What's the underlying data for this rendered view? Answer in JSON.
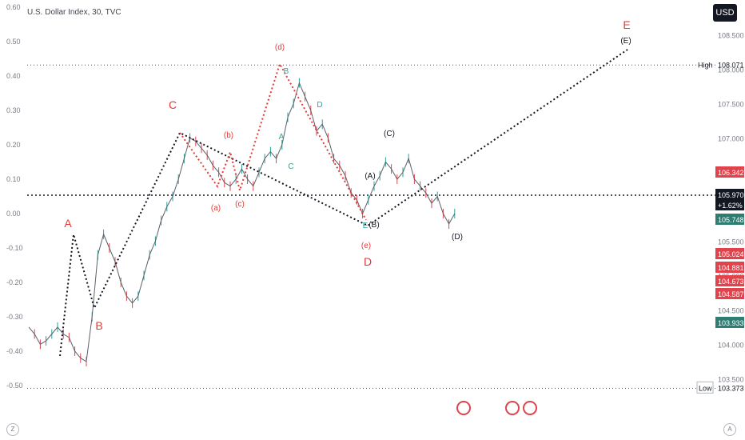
{
  "header": {
    "title": "U.S. Dollar Index, 30, TVC"
  },
  "controls": {
    "currency": "USD",
    "left_scale_button": "Z",
    "right_scale_button": "A"
  },
  "colors": {
    "red": "#e0434b",
    "teal": "#26a69a",
    "dark": "#131722",
    "wave_red": "#e53935",
    "gray": "#787b86"
  },
  "chart_data": {
    "type": "line",
    "series": [
      {
        "values": [
          -0.33,
          -0.35,
          -0.38,
          -0.37,
          -0.35,
          -0.33,
          -0.35,
          -0.36,
          -0.4,
          -0.42,
          -0.43,
          -0.3,
          -0.12,
          -0.06,
          -0.1,
          -0.14,
          -0.2,
          -0.24,
          -0.26,
          -0.24,
          -0.18,
          -0.12,
          -0.08,
          -0.02,
          0.02,
          0.05,
          0.1,
          0.16,
          0.22,
          0.21,
          0.19,
          0.17,
          0.14,
          0.12,
          0.09,
          0.08,
          0.1,
          0.13,
          0.1,
          0.08,
          0.12,
          0.16,
          0.18,
          0.16,
          0.2,
          0.28,
          0.32,
          0.38,
          0.34,
          0.3,
          0.24,
          0.26,
          0.22,
          0.16,
          0.14,
          0.11,
          0.06,
          0.04,
          0.0,
          0.04,
          0.08,
          0.11,
          0.15,
          0.13,
          0.1,
          0.12,
          0.16,
          0.1,
          0.08,
          0.06,
          0.03,
          0.05,
          0.0,
          -0.03,
          0.0
        ]
      }
    ],
    "left_axis": {
      "ticks": [
        "0.60",
        "0.50",
        "0.40",
        "0.30",
        "0.20",
        "0.10",
        "0.00",
        "-0.10",
        "-0.20",
        "-0.30",
        "-0.40",
        "-0.50"
      ]
    },
    "right_axis": {
      "ticks": [
        "108.500",
        "108.000",
        "107.500",
        "107.000",
        "106.500",
        "106.000",
        "105.500",
        "105.000",
        "104.500",
        "104.000",
        "103.500"
      ]
    },
    "high": {
      "label": "High",
      "value": "108.071"
    },
    "low": {
      "label": "Low",
      "value": "103.373"
    },
    "price_tags": [
      {
        "value": "106.342",
        "color": "red"
      },
      {
        "value": "105.970",
        "color": "dark"
      },
      {
        "value": "+1.62%",
        "color": "dark"
      },
      {
        "value": "105.748",
        "color": "teal"
      },
      {
        "value": "105.024",
        "color": "red"
      },
      {
        "value": "104.881",
        "color": "red"
      },
      {
        "value": "104.673",
        "color": "red"
      },
      {
        "value": "104.587",
        "color": "red"
      },
      {
        "value": "103.933",
        "color": "teal"
      }
    ],
    "wave_labels": [
      {
        "text": "A",
        "color": "red"
      },
      {
        "text": "B",
        "color": "red"
      },
      {
        "text": "C",
        "color": "red"
      },
      {
        "text": "D",
        "color": "red"
      },
      {
        "text": "E",
        "color": "red"
      },
      {
        "text": "(a)",
        "color": "red"
      },
      {
        "text": "(b)",
        "color": "red"
      },
      {
        "text": "(c)",
        "color": "red"
      },
      {
        "text": "(d)",
        "color": "red"
      },
      {
        "text": "(e)",
        "color": "red"
      },
      {
        "text": "(A)",
        "color": "dark"
      },
      {
        "text": "(B)",
        "color": "dark"
      },
      {
        "text": "(C)",
        "color": "dark"
      },
      {
        "text": "(D)",
        "color": "dark"
      },
      {
        "text": "(E)",
        "color": "dark"
      },
      {
        "text": "A",
        "color": "teal"
      },
      {
        "text": "B",
        "color": "teal"
      },
      {
        "text": "C",
        "color": "teal"
      },
      {
        "text": "D",
        "color": "teal"
      },
      {
        "text": "E",
        "color": "teal"
      }
    ]
  }
}
